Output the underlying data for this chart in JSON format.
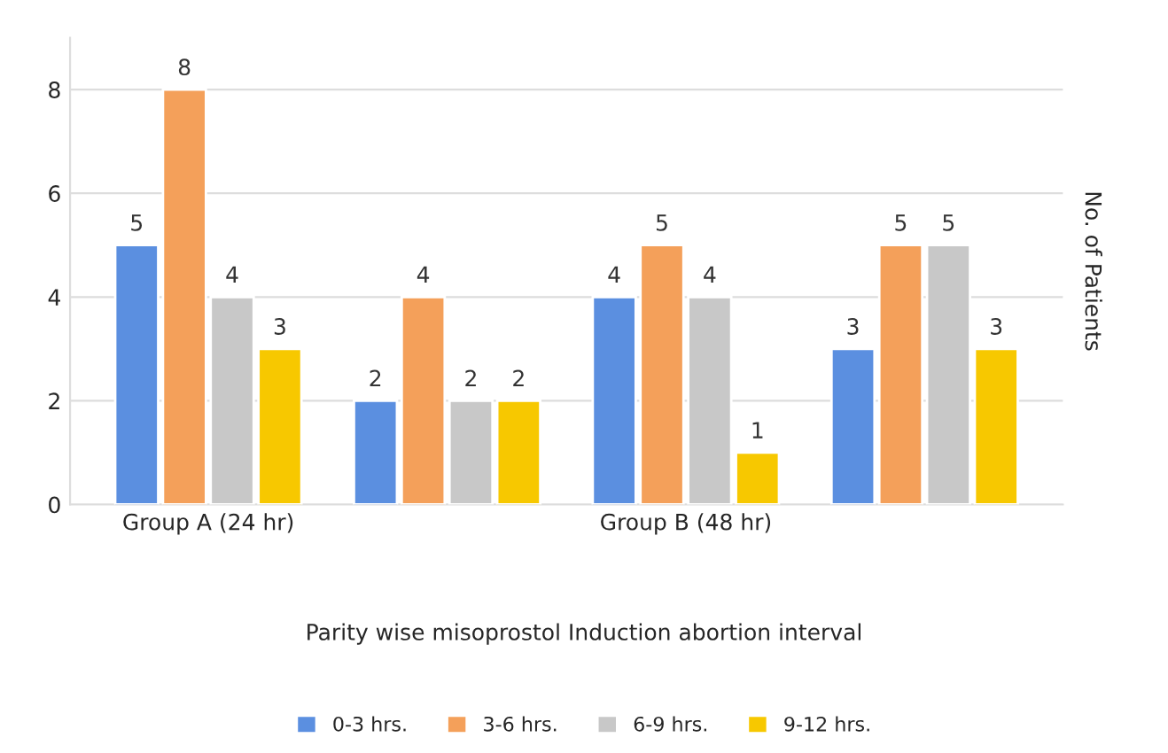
{
  "chart_data": {
    "type": "bar",
    "xlabel": "Parity wise misoprostol Induction abortion interval",
    "ylabel": "No. of Patients",
    "categories": [
      "Group A (24 hr)",
      null,
      "Group B (48 hr)",
      null
    ],
    "series": [
      {
        "name": "0-3 hrs.",
        "color": "#5b8fe0",
        "values": [
          5,
          2,
          4,
          3
        ]
      },
      {
        "name": "3-6 hrs.",
        "color": "#f4a05a",
        "values": [
          8,
          4,
          5,
          5
        ]
      },
      {
        "name": "6-9 hrs.",
        "color": "#c8c8c8",
        "values": [
          4,
          2,
          4,
          5
        ]
      },
      {
        "name": "9-12 hrs.",
        "color": "#f7c800",
        "values": [
          3,
          2,
          1,
          3
        ]
      }
    ],
    "ylim": [
      0,
      9
    ],
    "yticks": [
      0,
      2,
      4,
      6,
      8
    ],
    "grid": "y",
    "legend": "bottom",
    "data_labels": true
  }
}
